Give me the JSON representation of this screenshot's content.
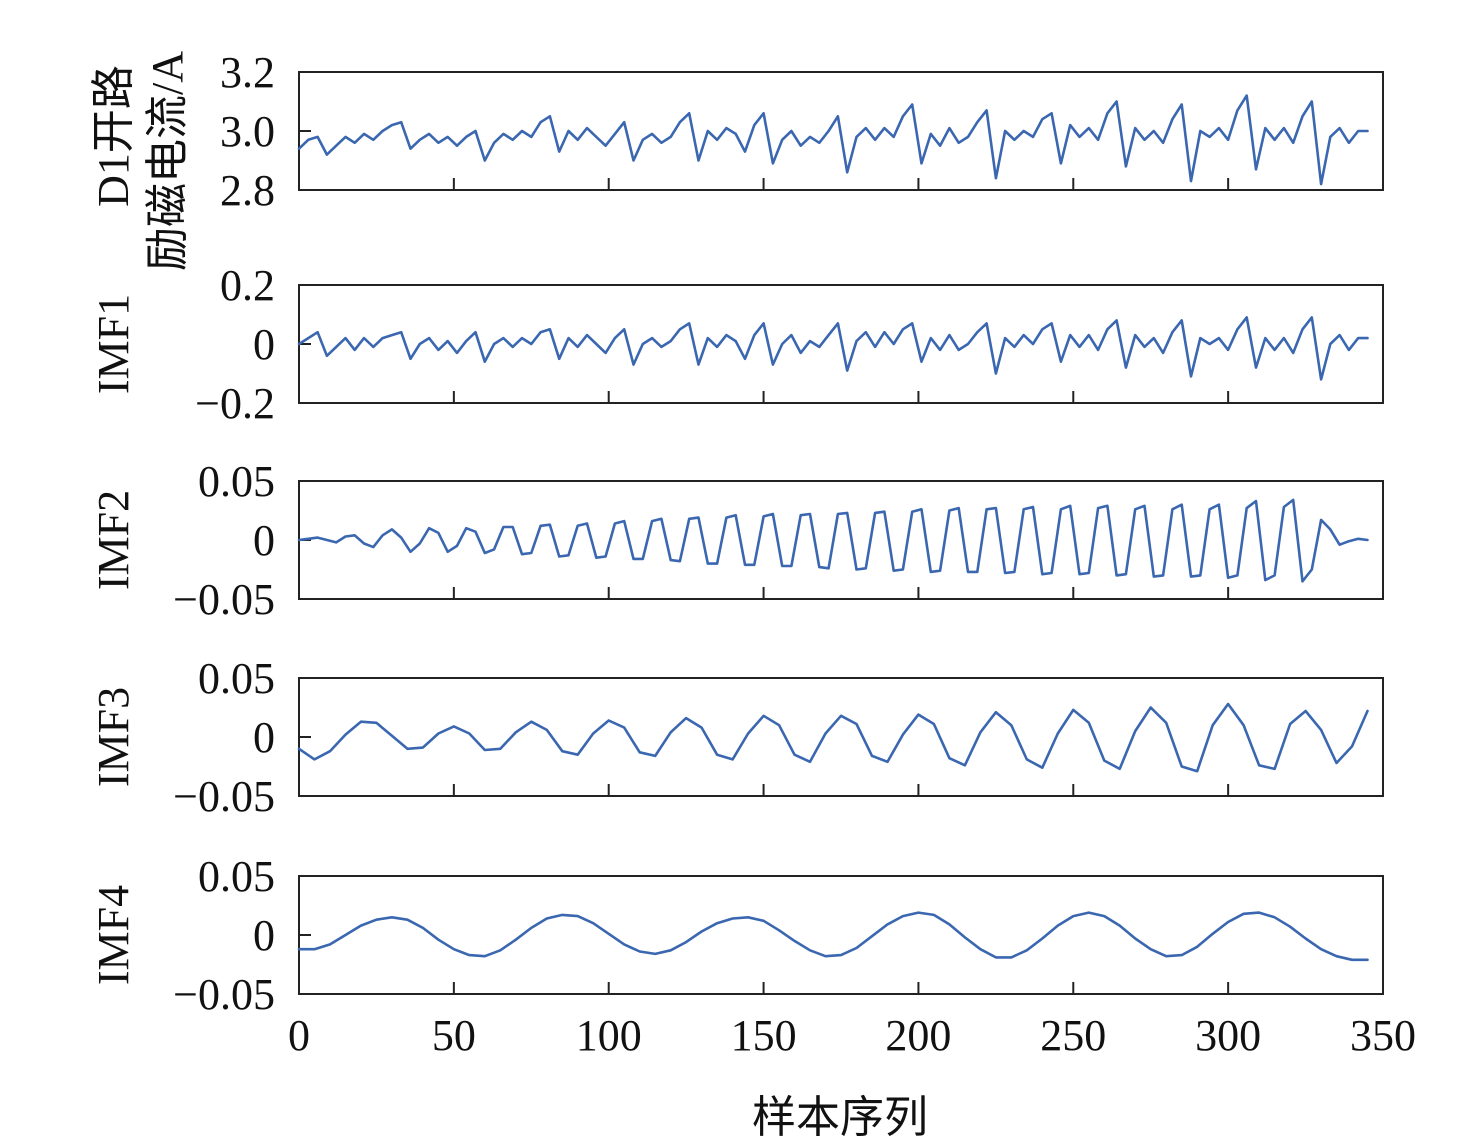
{
  "colors": {
    "series": "#3a67b0",
    "axis": "#222222"
  },
  "chart_data": {
    "type": "line",
    "xlabel": "样本序列",
    "xlim": [
      0,
      350
    ],
    "xticks": [
      0,
      50,
      100,
      150,
      200,
      250,
      300,
      350
    ],
    "xtick_labels": [
      "0",
      "50",
      "100",
      "150",
      "200",
      "250",
      "300",
      "350"
    ],
    "panels": [
      {
        "ylabel": [
          "D1开路",
          "励磁电流/A"
        ],
        "ylim": [
          2.8,
          3.2
        ],
        "yticks": [
          2.8,
          3.0,
          3.2
        ],
        "ytick_labels": [
          "2.8",
          "3.0",
          "3.2"
        ],
        "x": [
          0,
          3,
          6,
          9,
          12,
          15,
          18,
          21,
          24,
          27,
          30,
          33,
          36,
          39,
          42,
          45,
          48,
          51,
          54,
          57,
          60,
          63,
          66,
          69,
          72,
          75,
          78,
          81,
          84,
          87,
          90,
          93,
          96,
          99,
          102,
          105,
          108,
          111,
          114,
          117,
          120,
          123,
          126,
          129,
          132,
          135,
          138,
          141,
          144,
          147,
          150,
          153,
          156,
          159,
          162,
          165,
          168,
          171,
          174,
          177,
          180,
          183,
          186,
          189,
          192,
          195,
          198,
          201,
          204,
          207,
          210,
          213,
          216,
          219,
          222,
          225,
          228,
          231,
          234,
          237,
          240,
          243,
          246,
          249,
          252,
          255,
          258,
          261,
          264,
          267,
          270,
          273,
          276,
          279,
          282,
          285,
          288,
          291,
          294,
          297,
          300,
          303,
          306,
          309,
          312,
          315,
          318,
          321,
          324,
          327,
          330,
          333,
          336,
          339,
          342,
          345
        ],
        "y": [
          2.94,
          2.97,
          2.98,
          2.92,
          2.95,
          2.98,
          2.96,
          2.99,
          2.97,
          3.0,
          3.02,
          3.03,
          2.94,
          2.97,
          2.99,
          2.96,
          2.98,
          2.95,
          2.98,
          3.0,
          2.9,
          2.96,
          2.99,
          2.97,
          3.0,
          2.98,
          3.03,
          3.05,
          2.93,
          3.0,
          2.97,
          3.01,
          2.98,
          2.95,
          2.99,
          3.03,
          2.9,
          2.97,
          2.99,
          2.96,
          2.98,
          3.03,
          3.06,
          2.9,
          3.0,
          2.97,
          3.01,
          2.99,
          2.93,
          3.02,
          3.06,
          2.89,
          2.97,
          3.0,
          2.95,
          2.98,
          2.96,
          3.0,
          3.05,
          2.86,
          2.98,
          3.01,
          2.97,
          3.01,
          2.98,
          3.05,
          3.09,
          2.89,
          2.99,
          2.95,
          3.01,
          2.96,
          2.98,
          3.03,
          3.07,
          2.84,
          3.0,
          2.97,
          3.0,
          2.98,
          3.04,
          3.06,
          2.89,
          3.02,
          2.98,
          3.01,
          2.97,
          3.06,
          3.1,
          2.88,
          3.01,
          2.97,
          3.0,
          2.96,
          3.04,
          3.09,
          2.83,
          3.0,
          2.98,
          3.01,
          2.97,
          3.07,
          3.12,
          2.87,
          3.01,
          2.97,
          3.01,
          2.96,
          3.05,
          3.1,
          2.82,
          2.98,
          3.01,
          2.96,
          3.0,
          3.0
        ],
        "series_name": ""
      },
      {
        "ylabel": [
          "IMF1"
        ],
        "ylim": [
          -0.2,
          0.2
        ],
        "yticks": [
          -0.2,
          0,
          0.2
        ],
        "ytick_labels": [
          "−0.2",
          "0",
          "0.2"
        ],
        "x": [
          0,
          3,
          6,
          9,
          12,
          15,
          18,
          21,
          24,
          27,
          30,
          33,
          36,
          39,
          42,
          45,
          48,
          51,
          54,
          57,
          60,
          63,
          66,
          69,
          72,
          75,
          78,
          81,
          84,
          87,
          90,
          93,
          96,
          99,
          102,
          105,
          108,
          111,
          114,
          117,
          120,
          123,
          126,
          129,
          132,
          135,
          138,
          141,
          144,
          147,
          150,
          153,
          156,
          159,
          162,
          165,
          168,
          171,
          174,
          177,
          180,
          183,
          186,
          189,
          192,
          195,
          198,
          201,
          204,
          207,
          210,
          213,
          216,
          219,
          222,
          225,
          228,
          231,
          234,
          237,
          240,
          243,
          246,
          249,
          252,
          255,
          258,
          261,
          264,
          267,
          270,
          273,
          276,
          279,
          282,
          285,
          288,
          291,
          294,
          297,
          300,
          303,
          306,
          309,
          312,
          315,
          318,
          321,
          324,
          327,
          330,
          333,
          336,
          339,
          342,
          345
        ],
        "y": [
          0.0,
          0.02,
          0.04,
          -0.04,
          -0.01,
          0.02,
          -0.02,
          0.02,
          -0.01,
          0.02,
          0.03,
          0.04,
          -0.05,
          0.0,
          0.02,
          -0.02,
          0.01,
          -0.03,
          0.01,
          0.04,
          -0.06,
          0.0,
          0.02,
          -0.01,
          0.02,
          0.0,
          0.04,
          0.05,
          -0.05,
          0.02,
          -0.01,
          0.03,
          0.0,
          -0.03,
          0.02,
          0.05,
          -0.07,
          0.0,
          0.02,
          -0.01,
          0.01,
          0.05,
          0.07,
          -0.07,
          0.02,
          -0.01,
          0.03,
          0.01,
          -0.05,
          0.03,
          0.07,
          -0.07,
          0.0,
          0.03,
          -0.03,
          0.01,
          -0.01,
          0.03,
          0.07,
          -0.09,
          0.01,
          0.04,
          -0.01,
          0.04,
          0.0,
          0.05,
          0.07,
          -0.06,
          0.02,
          -0.02,
          0.03,
          -0.02,
          0.0,
          0.04,
          0.07,
          -0.1,
          0.02,
          -0.01,
          0.03,
          0.0,
          0.05,
          0.07,
          -0.06,
          0.03,
          -0.01,
          0.03,
          -0.02,
          0.05,
          0.08,
          -0.08,
          0.03,
          -0.01,
          0.02,
          -0.03,
          0.04,
          0.08,
          -0.11,
          0.02,
          0.0,
          0.02,
          -0.02,
          0.05,
          0.09,
          -0.08,
          0.02,
          -0.02,
          0.02,
          -0.03,
          0.05,
          0.09,
          -0.12,
          0.0,
          0.03,
          -0.02,
          0.02,
          0.02
        ],
        "series_name": ""
      },
      {
        "ylabel": [
          "IMF2"
        ],
        "ylim": [
          -0.05,
          0.05
        ],
        "yticks": [
          -0.05,
          0,
          0.05
        ],
        "ytick_labels": [
          "−0.05",
          "0",
          "0.05"
        ],
        "x": [
          0,
          3,
          6,
          9,
          12,
          15,
          18,
          21,
          24,
          27,
          30,
          33,
          36,
          39,
          42,
          45,
          48,
          51,
          54,
          57,
          60,
          63,
          66,
          69,
          72,
          75,
          78,
          81,
          84,
          87,
          90,
          93,
          96,
          99,
          102,
          105,
          108,
          111,
          114,
          117,
          120,
          123,
          126,
          129,
          132,
          135,
          138,
          141,
          144,
          147,
          150,
          153,
          156,
          159,
          162,
          165,
          168,
          171,
          174,
          177,
          180,
          183,
          186,
          189,
          192,
          195,
          198,
          201,
          204,
          207,
          210,
          213,
          216,
          219,
          222,
          225,
          228,
          231,
          234,
          237,
          240,
          243,
          246,
          249,
          252,
          255,
          258,
          261,
          264,
          267,
          270,
          273,
          276,
          279,
          282,
          285,
          288,
          291,
          294,
          297,
          300,
          303,
          306,
          309,
          312,
          315,
          318,
          321,
          324,
          327,
          330,
          333,
          336,
          339,
          342,
          345
        ],
        "y": [
          0.0,
          0.001,
          0.002,
          0.0,
          -0.002,
          0.003,
          0.004,
          -0.003,
          -0.006,
          0.004,
          0.009,
          0.002,
          -0.01,
          -0.003,
          0.01,
          0.006,
          -0.01,
          -0.005,
          0.01,
          0.007,
          -0.011,
          -0.008,
          0.011,
          0.011,
          -0.012,
          -0.011,
          0.012,
          0.013,
          -0.014,
          -0.013,
          0.012,
          0.014,
          -0.015,
          -0.014,
          0.014,
          0.016,
          -0.016,
          -0.016,
          0.016,
          0.018,
          -0.017,
          -0.018,
          0.018,
          0.019,
          -0.02,
          -0.02,
          0.019,
          0.021,
          -0.021,
          -0.021,
          0.02,
          0.022,
          -0.022,
          -0.022,
          0.021,
          0.022,
          -0.023,
          -0.024,
          0.022,
          0.023,
          -0.025,
          -0.024,
          0.023,
          0.024,
          -0.026,
          -0.025,
          0.024,
          0.026,
          -0.027,
          -0.026,
          0.025,
          0.027,
          -0.027,
          -0.027,
          0.026,
          0.027,
          -0.028,
          -0.027,
          0.026,
          0.028,
          -0.029,
          -0.028,
          0.026,
          0.029,
          -0.029,
          -0.028,
          0.027,
          0.029,
          -0.03,
          -0.029,
          0.026,
          0.029,
          -0.031,
          -0.03,
          0.026,
          0.03,
          -0.031,
          -0.03,
          0.026,
          0.03,
          -0.032,
          -0.03,
          0.027,
          0.033,
          -0.034,
          -0.03,
          0.028,
          0.034,
          -0.035,
          -0.025,
          0.017,
          0.009,
          -0.004,
          -0.001,
          0.001,
          0.0
        ],
        "series_name": ""
      },
      {
        "ylabel": [
          "IMF3"
        ],
        "ylim": [
          -0.05,
          0.05
        ],
        "yticks": [
          -0.05,
          0,
          0.05
        ],
        "ytick_labels": [
          "−0.05",
          "0",
          "0.05"
        ],
        "x": [
          0,
          5,
          10,
          15,
          20,
          25,
          30,
          35,
          40,
          45,
          50,
          55,
          60,
          65,
          70,
          75,
          80,
          85,
          90,
          95,
          100,
          105,
          110,
          115,
          120,
          125,
          130,
          135,
          140,
          145,
          150,
          155,
          160,
          165,
          170,
          175,
          180,
          185,
          190,
          195,
          200,
          205,
          210,
          215,
          220,
          225,
          230,
          235,
          240,
          245,
          250,
          255,
          260,
          265,
          270,
          275,
          280,
          285,
          290,
          295,
          300,
          305,
          310,
          315,
          320,
          325,
          330,
          335,
          340,
          345
        ],
        "y": [
          -0.01,
          -0.019,
          -0.012,
          0.002,
          0.013,
          0.012,
          0.001,
          -0.01,
          -0.009,
          0.003,
          0.009,
          0.003,
          -0.011,
          -0.01,
          0.004,
          0.013,
          0.006,
          -0.012,
          -0.015,
          0.003,
          0.014,
          0.008,
          -0.013,
          -0.016,
          0.004,
          0.016,
          0.008,
          -0.015,
          -0.019,
          0.003,
          0.018,
          0.01,
          -0.015,
          -0.021,
          0.003,
          0.018,
          0.011,
          -0.016,
          -0.021,
          0.002,
          0.019,
          0.011,
          -0.018,
          -0.024,
          0.004,
          0.021,
          0.01,
          -0.019,
          -0.026,
          0.003,
          0.023,
          0.012,
          -0.02,
          -0.027,
          0.005,
          0.025,
          0.012,
          -0.025,
          -0.029,
          0.01,
          0.028,
          0.01,
          -0.024,
          -0.027,
          0.011,
          0.022,
          0.006,
          -0.022,
          -0.008,
          0.022
        ],
        "series_name": ""
      },
      {
        "ylabel": [
          "IMF4"
        ],
        "ylim": [
          -0.05,
          0.05
        ],
        "yticks": [
          -0.05,
          0,
          0.05
        ],
        "ytick_labels": [
          "−0.05",
          "0",
          "0.05"
        ],
        "x": [
          0,
          5,
          10,
          15,
          20,
          25,
          30,
          35,
          40,
          45,
          50,
          55,
          60,
          65,
          70,
          75,
          80,
          85,
          90,
          95,
          100,
          105,
          110,
          115,
          120,
          125,
          130,
          135,
          140,
          145,
          150,
          155,
          160,
          165,
          170,
          175,
          180,
          185,
          190,
          195,
          200,
          205,
          210,
          215,
          220,
          225,
          230,
          235,
          240,
          245,
          250,
          255,
          260,
          265,
          270,
          275,
          280,
          285,
          290,
          295,
          300,
          305,
          310,
          315,
          320,
          325,
          330,
          335,
          340,
          345
        ],
        "y": [
          -0.012,
          -0.012,
          -0.008,
          0.0,
          0.008,
          0.013,
          0.015,
          0.013,
          0.006,
          -0.004,
          -0.012,
          -0.017,
          -0.018,
          -0.013,
          -0.004,
          0.006,
          0.014,
          0.017,
          0.016,
          0.01,
          0.001,
          -0.008,
          -0.014,
          -0.016,
          -0.013,
          -0.006,
          0.003,
          0.01,
          0.014,
          0.015,
          0.012,
          0.004,
          -0.005,
          -0.013,
          -0.018,
          -0.017,
          -0.011,
          -0.001,
          0.009,
          0.016,
          0.019,
          0.017,
          0.009,
          -0.002,
          -0.012,
          -0.019,
          -0.019,
          -0.013,
          -0.003,
          0.008,
          0.016,
          0.019,
          0.016,
          0.008,
          -0.003,
          -0.012,
          -0.018,
          -0.017,
          -0.01,
          0.001,
          0.011,
          0.018,
          0.019,
          0.015,
          0.007,
          -0.003,
          -0.012,
          -0.018,
          -0.021,
          -0.021
        ],
        "series_name": ""
      }
    ]
  }
}
